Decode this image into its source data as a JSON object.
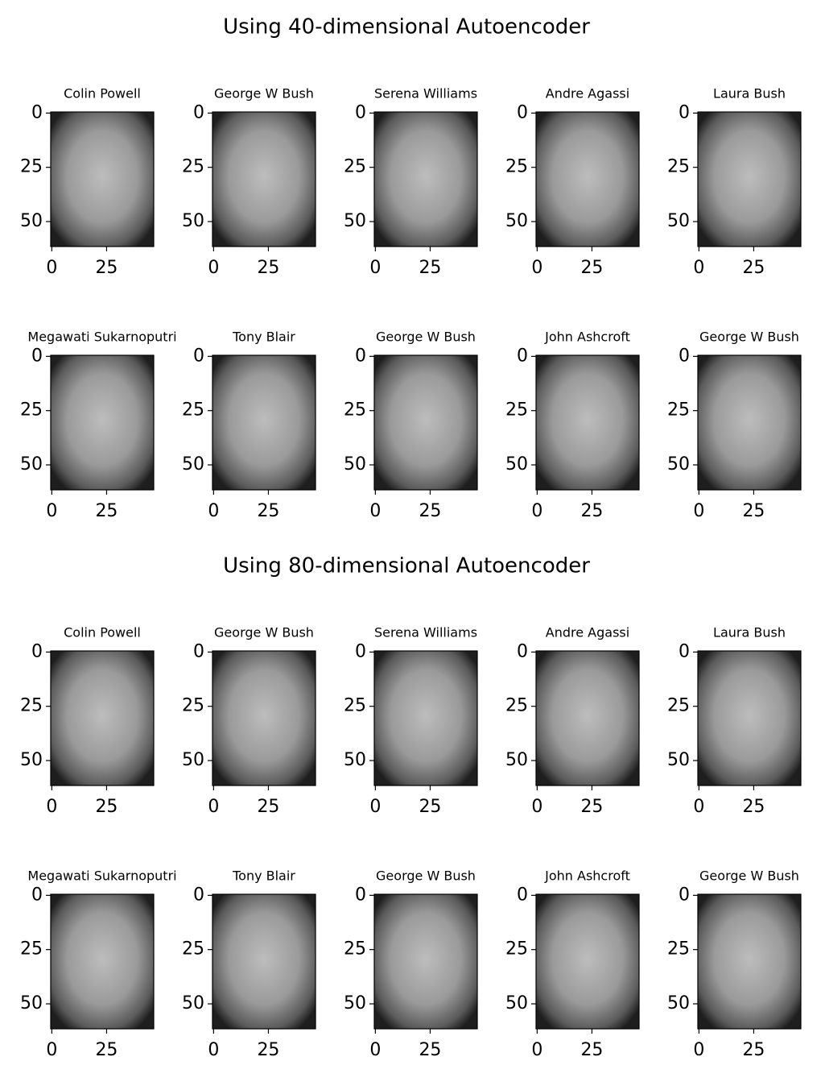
{
  "sections": [
    {
      "title": "Using 40-dimensional Autoencoder",
      "panels": [
        "Colin Powell",
        "George W Bush",
        "Serena Williams",
        "Andre Agassi",
        "Laura Bush",
        "Megawati Sukarnoputri",
        "Tony Blair",
        "George W Bush",
        "John Ashcroft",
        "George W Bush"
      ]
    },
    {
      "title": "Using 80-dimensional Autoencoder",
      "panels": [
        "Colin Powell",
        "George W Bush",
        "Serena Williams",
        "Andre Agassi",
        "Laura Bush",
        "Megawati Sukarnoputri",
        "Tony Blair",
        "George W Bush",
        "John Ashcroft",
        "George W Bush"
      ]
    }
  ],
  "xlim": [
    -0.5,
    46.5
  ],
  "ylim": [
    61.5,
    -0.5
  ],
  "xticks": [
    0,
    25
  ],
  "yticks": [
    0,
    25,
    50
  ]
}
